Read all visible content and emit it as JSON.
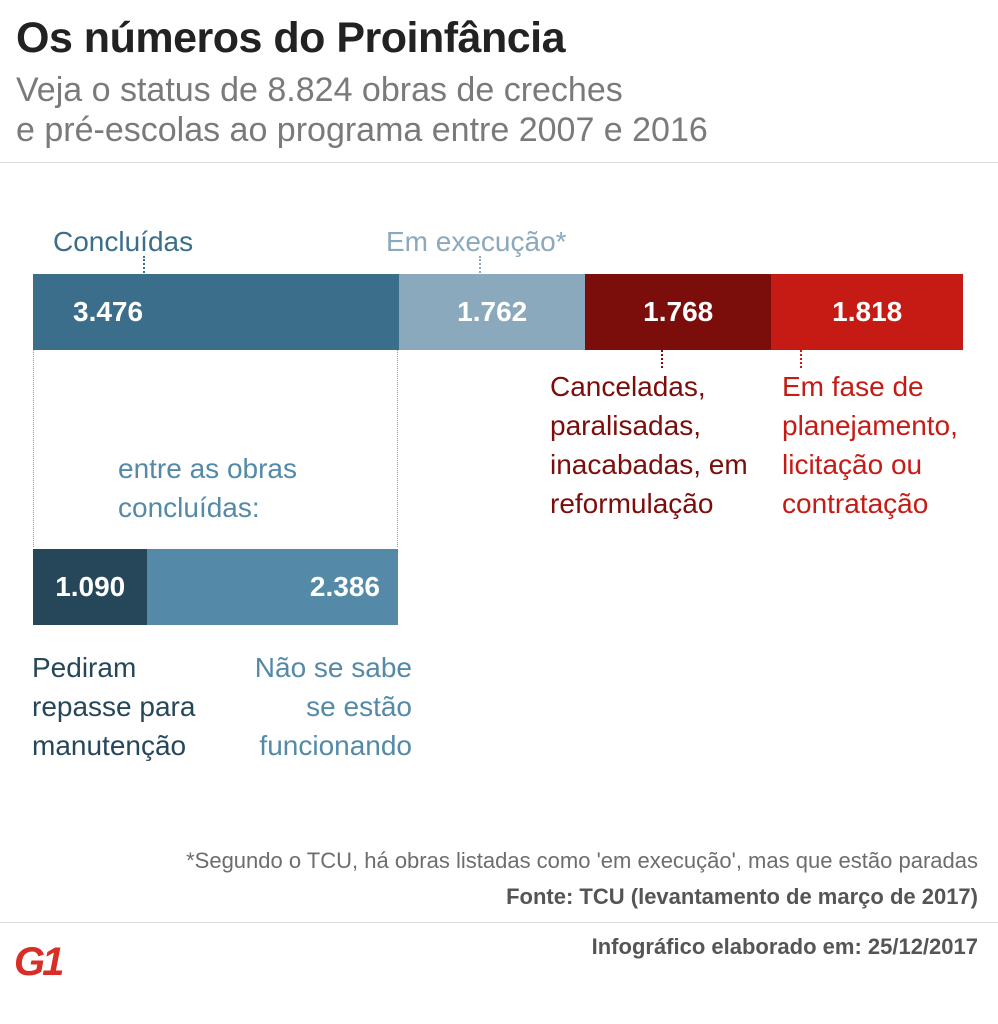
{
  "header": {
    "title": "Os números do Proinfância",
    "subtitle_line1": "Veja o status de 8.824 obras de creches",
    "subtitle_line2": "e pré-escolas ao programa entre 2007 e 2016"
  },
  "colors": {
    "concluidas": "#3b6e8b",
    "em_execucao": "#8ba9bc",
    "canceladas": "#7b0d0b",
    "planejamento": "#c51b14",
    "repasse": "#26475a",
    "nao_sabe": "#548aa8"
  },
  "chart_data": [
    {
      "type": "bar",
      "orientation": "horizontal-stacked",
      "total": 8824,
      "series": [
        {
          "name": "Concluídas",
          "value": 3476,
          "value_label": "3.476"
        },
        {
          "name": "Em execução*",
          "value": 1762,
          "value_label": "1.762"
        },
        {
          "name": "Canceladas, paralisadas, inacabadas, em reformulação",
          "value": 1768,
          "value_label": "1.768"
        },
        {
          "name": "Em fase de planejamento, licitação ou contratação",
          "value": 1818,
          "value_label": "1.818"
        }
      ]
    },
    {
      "type": "bar",
      "orientation": "horizontal-stacked",
      "title": "entre as obras concluídas:",
      "total": 3476,
      "series": [
        {
          "name": "Pediram repasse para manutenção",
          "value": 1090,
          "value_label": "1.090"
        },
        {
          "name": "Não se sabe se estão funcionando",
          "value": 2386,
          "value_label": "2.386"
        }
      ]
    }
  ],
  "labels": {
    "concluidas": "Concluídas",
    "em_execucao": "Em execução*",
    "canceladas": [
      "Canceladas,",
      "paralisadas,",
      "inacabadas, em",
      "reformulação"
    ],
    "planejamento": [
      "Em fase de",
      "planejamento,",
      "licitação ou",
      "contratação"
    ],
    "sub_title": [
      "entre as obras",
      "concluídas:"
    ],
    "repasse": [
      "Pediram",
      "repasse para",
      "manutenção"
    ],
    "nao_sabe": [
      "Não se sabe",
      "se estão",
      "funcionando"
    ]
  },
  "footer": {
    "footnote": "*Segundo o TCU, há obras listadas como 'em execução', mas que estão paradas",
    "source": "Fonte: TCU (levantamento de março de 2017)",
    "credit": "Infográfico elaborado em: 25/12/2017",
    "logo": "G1"
  }
}
